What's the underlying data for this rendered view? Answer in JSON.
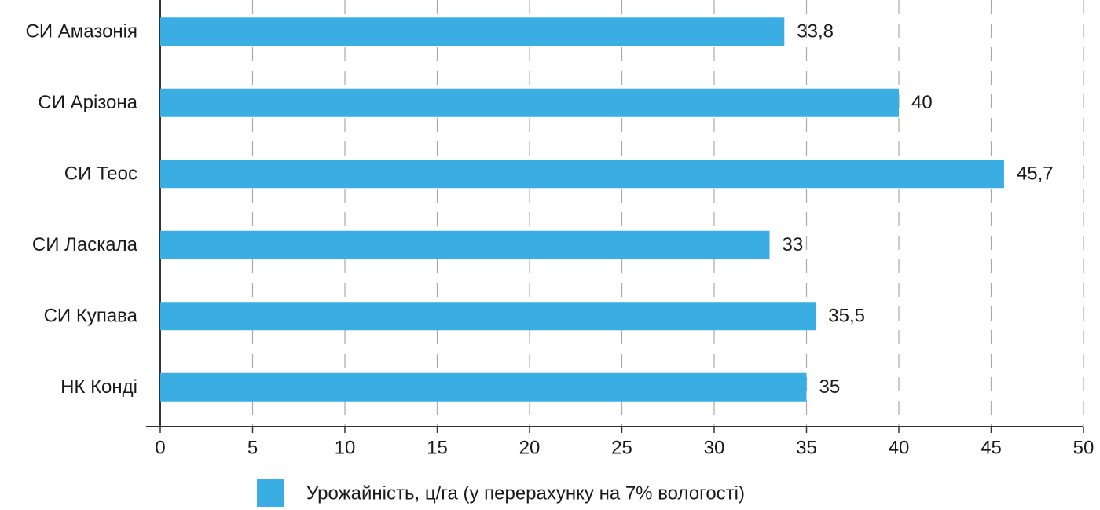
{
  "chart_data": {
    "type": "barh",
    "categories": [
      "СИ Амазонія",
      "СИ Арізона",
      "СИ Теос",
      "СИ Ласкала",
      "СИ Купава",
      "НК Конді"
    ],
    "series": [
      {
        "name": "Урожайність, ц/га (у перерахунку на 7% вологості)",
        "color": "#3aaee3",
        "values": [
          33.8,
          40,
          45.7,
          33,
          35.5,
          35
        ],
        "value_labels": [
          "33,8",
          "40",
          "45,7",
          "33",
          "35,5",
          "35"
        ]
      }
    ],
    "xlim": [
      0,
      50
    ],
    "xticks": [
      0,
      5,
      10,
      15,
      20,
      25,
      30,
      35,
      40,
      45,
      50
    ],
    "grid": true,
    "legend": "bottom"
  }
}
